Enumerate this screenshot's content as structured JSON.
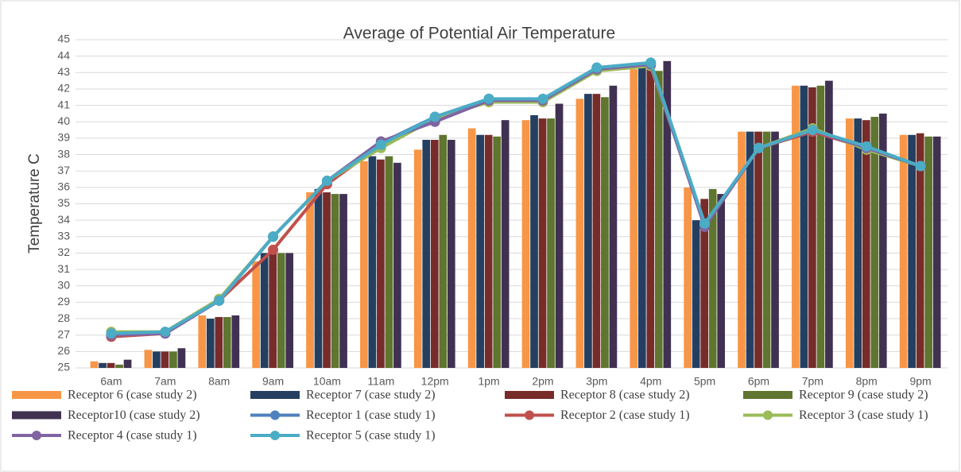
{
  "chart_data": {
    "type": "bar",
    "title": "Average of  Potential Air Temperature",
    "y_label": "Temperature C",
    "categories": [
      "6am",
      "7am",
      "8am",
      "9am",
      "10am",
      "11am",
      "12pm",
      "1pm",
      "2pm",
      "3pm",
      "4pm",
      "5pm",
      "6pm",
      "7pm",
      "8pm",
      "9pm"
    ],
    "ylim": [
      25,
      45
    ],
    "yticks": [
      25,
      26,
      27,
      28,
      29,
      30,
      31,
      32,
      33,
      34,
      35,
      36,
      37,
      38,
      39,
      40,
      41,
      42,
      43,
      44,
      45
    ],
    "grid": true,
    "legend": "bottom",
    "series": [
      {
        "name": "Receptor 6 (case study 2)",
        "type": "bar",
        "color": "#f79646",
        "values": [
          25.4,
          26.1,
          28.2,
          31.5,
          35.7,
          37.6,
          38.3,
          39.6,
          40.1,
          41.4,
          43.2,
          36.0,
          39.4,
          42.2,
          40.2,
          39.2
        ]
      },
      {
        "name": "Receptor 7 (case study 2)",
        "type": "bar",
        "color": "#243f60",
        "values": [
          25.3,
          26.0,
          28.0,
          32.0,
          35.9,
          37.9,
          38.9,
          39.2,
          40.4,
          41.7,
          43.3,
          34.0,
          39.4,
          42.2,
          40.2,
          39.2
        ]
      },
      {
        "name": "Receptor 8 (case study 2)",
        "type": "bar",
        "color": "#772c2a",
        "values": [
          25.3,
          26.0,
          28.1,
          32.0,
          35.7,
          37.7,
          38.9,
          39.2,
          40.2,
          41.7,
          43.4,
          35.3,
          39.4,
          42.1,
          40.1,
          39.3
        ]
      },
      {
        "name": "Receptor 9 (case study 2)",
        "type": "bar",
        "color": "#5f7530",
        "values": [
          25.2,
          26.0,
          28.1,
          32.0,
          35.6,
          37.9,
          39.2,
          39.1,
          40.2,
          41.5,
          43.1,
          35.9,
          39.4,
          42.2,
          40.3,
          39.1
        ]
      },
      {
        "name": "Receptor10 (case study 2)",
        "type": "bar",
        "color": "#403152",
        "values": [
          25.5,
          26.2,
          28.2,
          32.0,
          35.6,
          37.5,
          38.9,
          40.1,
          41.1,
          42.2,
          43.7,
          35.6,
          39.4,
          42.5,
          40.5,
          39.1
        ]
      },
      {
        "name": "Receptor 1 (case study 1)",
        "type": "line",
        "color": "#4f81bd",
        "values": [
          27.0,
          27.1,
          29.1,
          33.0,
          36.4,
          38.7,
          40.3,
          41.4,
          41.3,
          43.3,
          43.6,
          33.7,
          38.4,
          39.4,
          38.4,
          37.3
        ]
      },
      {
        "name": "Receptor 2 (case study 1)",
        "type": "line",
        "color": "#c0504d",
        "values": [
          26.9,
          27.1,
          29.1,
          32.2,
          36.2,
          38.6,
          40.2,
          41.3,
          41.3,
          43.2,
          43.5,
          33.6,
          38.4,
          39.4,
          38.4,
          37.3
        ]
      },
      {
        "name": "Receptor 3 (case study 1)",
        "type": "line",
        "color": "#9bbb59",
        "values": [
          27.2,
          27.2,
          29.2,
          33.0,
          36.4,
          38.4,
          40.2,
          41.2,
          41.2,
          43.1,
          43.4,
          33.7,
          38.4,
          39.6,
          38.3,
          37.3
        ]
      },
      {
        "name": "Receptor 4 (case study 1)",
        "type": "line",
        "color": "#8064a2",
        "values": [
          27.0,
          27.1,
          29.1,
          33.0,
          36.4,
          38.8,
          40.0,
          41.3,
          41.3,
          43.2,
          43.5,
          33.6,
          38.4,
          39.5,
          38.4,
          37.3
        ]
      },
      {
        "name": "Receptor 5 (case study 1)",
        "type": "line",
        "color": "#4bacc6",
        "values": [
          27.1,
          27.2,
          29.1,
          33.0,
          36.4,
          38.6,
          40.3,
          41.4,
          41.4,
          43.3,
          43.6,
          33.8,
          38.4,
          39.5,
          38.5,
          37.3
        ]
      }
    ]
  }
}
